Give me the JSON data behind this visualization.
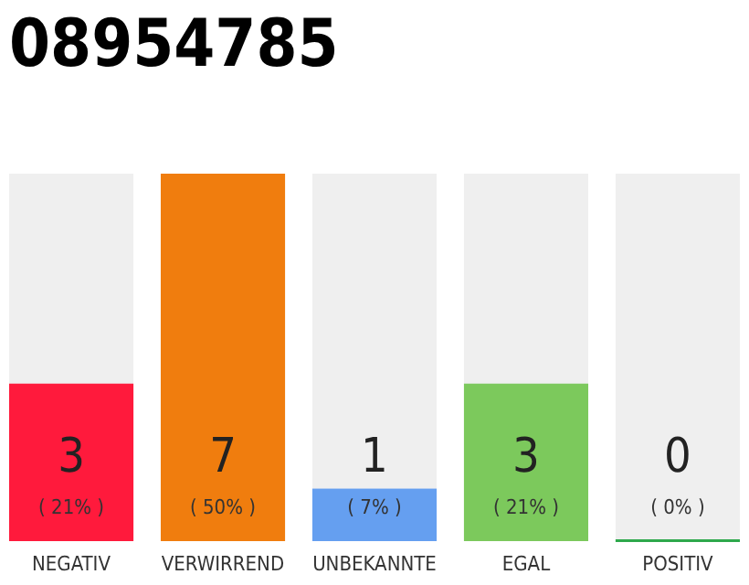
{
  "chart_data": {
    "type": "bar",
    "title": "08954785",
    "categories": [
      "NEGATIV",
      "VERWIRREND",
      "UNBEKANNTE",
      "EGAL",
      "POSITIV"
    ],
    "values": [
      3,
      7,
      1,
      3,
      0
    ],
    "colors": [
      "#ff1a3c",
      "#f07d0e",
      "#659ff0",
      "#7cc95c",
      "#2ea84c"
    ],
    "ylim": [
      0,
      7
    ],
    "tick_labels": "x",
    "data_labels": true,
    "annotations": [
      "( 21% )",
      "( 50% )",
      "( 7% )",
      "( 21% )",
      "( 0% )"
    ]
  }
}
